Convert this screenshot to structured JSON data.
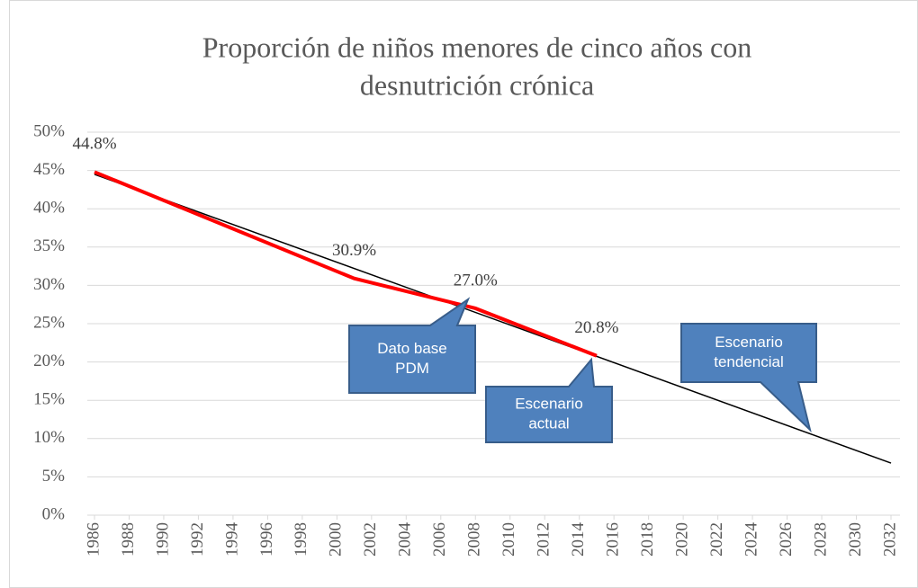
{
  "chart_data": {
    "type": "line",
    "title": [
      "Proporción de niños menores de cinco años con",
      "desnutrición crónica"
    ],
    "series": [
      {
        "color": "#ff0000",
        "x": [
          1986,
          2001,
          2008,
          2015
        ],
        "values": [
          44.8,
          30.9,
          27.0,
          20.8
        ],
        "value_labels": [
          "44.8%",
          "30.9%",
          "27.0%",
          "20.8%"
        ]
      },
      {
        "color": "#000000",
        "x": [
          1986,
          2032
        ],
        "values": [
          44.5,
          6.8
        ]
      }
    ],
    "xlim": [
      1986,
      2032
    ],
    "xticks": [
      1986,
      1988,
      1990,
      1992,
      1994,
      1996,
      1998,
      2000,
      2002,
      2004,
      2006,
      2008,
      2010,
      2012,
      2014,
      2016,
      2018,
      2020,
      2022,
      2024,
      2026,
      2028,
      2030,
      2032
    ],
    "ylim": [
      0,
      50
    ],
    "yticks": [
      {
        "value": 0,
        "label": "0%"
      },
      {
        "value": 5,
        "label": "5%"
      },
      {
        "value": 10,
        "label": "10%"
      },
      {
        "value": 15,
        "label": "15%"
      },
      {
        "value": 20,
        "label": "20%"
      },
      {
        "value": 25,
        "label": "25%"
      },
      {
        "value": 30,
        "label": "30%"
      },
      {
        "value": 35,
        "label": "35%"
      },
      {
        "value": 40,
        "label": "40%"
      },
      {
        "value": 45,
        "label": "45%"
      },
      {
        "value": 50,
        "label": "50%"
      }
    ],
    "grid": true,
    "annotations": [
      {
        "lines": [
          "Dato base",
          "PDM"
        ]
      },
      {
        "lines": [
          "Escenario",
          "actual"
        ]
      },
      {
        "lines": [
          "Escenario",
          "tendencial"
        ]
      }
    ]
  }
}
